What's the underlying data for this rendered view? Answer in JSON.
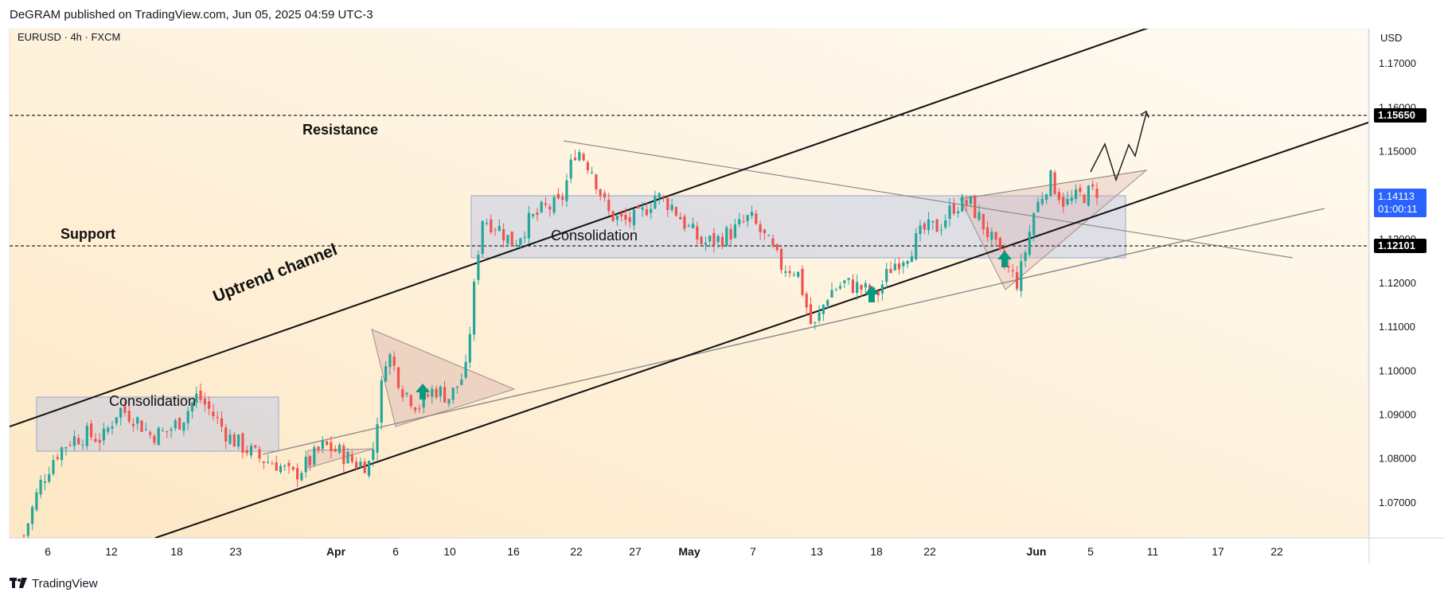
{
  "header": {
    "published": "DeGRAM published on TradingView.com, Jun 05, 2025 04:59 UTC-3"
  },
  "symbol": {
    "title": "EURUSD · 4h · FXCM",
    "currency": "USD"
  },
  "price_axis": {
    "ticks": [
      "1.17000",
      "1.16000",
      "1.15000",
      "1.14000",
      "1.13000",
      "1.12000",
      "1.11000",
      "1.10000",
      "1.09000",
      "1.08000",
      "1.07000"
    ],
    "resistance_label": "1.15650",
    "support_label": "1.12101",
    "current_price": "1.14113",
    "countdown": "01:00:11"
  },
  "time_axis": {
    "labels": [
      "6",
      "12",
      "18",
      "23",
      "Apr",
      "6",
      "10",
      "16",
      "22",
      "27",
      "May",
      "7",
      "13",
      "18",
      "22",
      "Jun",
      "5",
      "11",
      "17",
      "22"
    ]
  },
  "annotations": {
    "resistance": "Resistance",
    "support": "Support",
    "uptrend": "Uptrend channel",
    "consolidation_1": "Consolidation",
    "consolidation_2": "Consolidation"
  },
  "colors": {
    "up_candle": "#26a69a",
    "down_candle": "#ef5350",
    "arrow": "#089981",
    "current_price_badge": "#2962ff",
    "level_badge": "#000000",
    "box_fill": "#b7c4e6"
  },
  "footer": {
    "brand": "TradingView",
    "logo_icon": "tradingview-logo-icon"
  },
  "chart_data": {
    "type": "candlestick",
    "symbol": "EURUSD",
    "timeframe": "4h",
    "y_axis": {
      "min": 1.062,
      "max": 1.178,
      "unit": "USD"
    },
    "levels": [
      {
        "name": "Resistance",
        "price": 1.1565
      },
      {
        "name": "Support",
        "price": 1.12101
      }
    ],
    "current_price": 1.14113,
    "close_path": [
      [
        "Mar 3",
        1.0625
      ],
      [
        "Mar 4",
        1.074
      ],
      [
        "Mar 5",
        1.081
      ],
      [
        "Mar 6",
        1.0845
      ],
      [
        "Mar 7",
        1.0855
      ],
      [
        "Mar 10",
        1.0845
      ],
      [
        "Mar 11",
        1.0915
      ],
      [
        "Mar 12",
        1.0895
      ],
      [
        "Mar 13",
        1.0855
      ],
      [
        "Mar 14",
        1.086
      ],
      [
        "Mar 17",
        1.089
      ],
      [
        "Mar 18",
        1.0945
      ],
      [
        "Mar 19",
        1.09
      ],
      [
        "Mar 20",
        1.085
      ],
      [
        "Mar 21",
        1.0825
      ],
      [
        "Mar 24",
        1.08
      ],
      [
        "Mar 25",
        1.079
      ],
      [
        "Mar 26",
        1.076
      ],
      [
        "Mar 27",
        1.079
      ],
      [
        "Mar 28",
        1.083
      ],
      [
        "Mar 31",
        1.0815
      ],
      [
        "Apr 1",
        1.079
      ],
      [
        "Apr 2",
        1.079
      ],
      [
        "Apr 3",
        1.105
      ],
      [
        "Apr 4",
        1.096
      ],
      [
        "Apr 7",
        1.092
      ],
      [
        "Apr 8",
        1.096
      ],
      [
        "Apr 9",
        1.094
      ],
      [
        "Apr 10",
        1.1
      ],
      [
        "Apr 11",
        1.135
      ],
      [
        "Apr 14",
        1.133
      ],
      [
        "Apr 15",
        1.129
      ],
      [
        "Apr 16",
        1.134
      ],
      [
        "Apr 17",
        1.137
      ],
      [
        "Apr 18",
        1.138
      ],
      [
        "Apr 21",
        1.151
      ],
      [
        "Apr 22",
        1.146
      ],
      [
        "Apr 23",
        1.136
      ],
      [
        "Apr 24",
        1.134
      ],
      [
        "Apr 25",
        1.135
      ],
      [
        "Apr 28",
        1.14
      ],
      [
        "Apr 29",
        1.138
      ],
      [
        "Apr 30",
        1.133
      ],
      [
        "May 1",
        1.129
      ],
      [
        "May 2",
        1.13
      ],
      [
        "May 5",
        1.132
      ],
      [
        "May 6",
        1.135
      ],
      [
        "May 7",
        1.13
      ],
      [
        "May 8",
        1.124
      ],
      [
        "May 9",
        1.123
      ],
      [
        "May 12",
        1.109
      ],
      [
        "May 13",
        1.118
      ],
      [
        "May 14",
        1.12
      ],
      [
        "May 15",
        1.119
      ],
      [
        "May 16",
        1.117
      ],
      [
        "May 19",
        1.124
      ],
      [
        "May 20",
        1.127
      ],
      [
        "May 21",
        1.132
      ],
      [
        "May 22",
        1.133
      ],
      [
        "May 23",
        1.138
      ],
      [
        "May 26",
        1.138
      ],
      [
        "May 27",
        1.132
      ],
      [
        "May 28",
        1.125
      ],
      [
        "May 29",
        1.12
      ],
      [
        "May 30",
        1.136
      ],
      [
        "Jun 2",
        1.144
      ],
      [
        "Jun 3",
        1.138
      ],
      [
        "Jun 4",
        1.14
      ],
      [
        "Jun 5",
        1.1411
      ]
    ]
  }
}
